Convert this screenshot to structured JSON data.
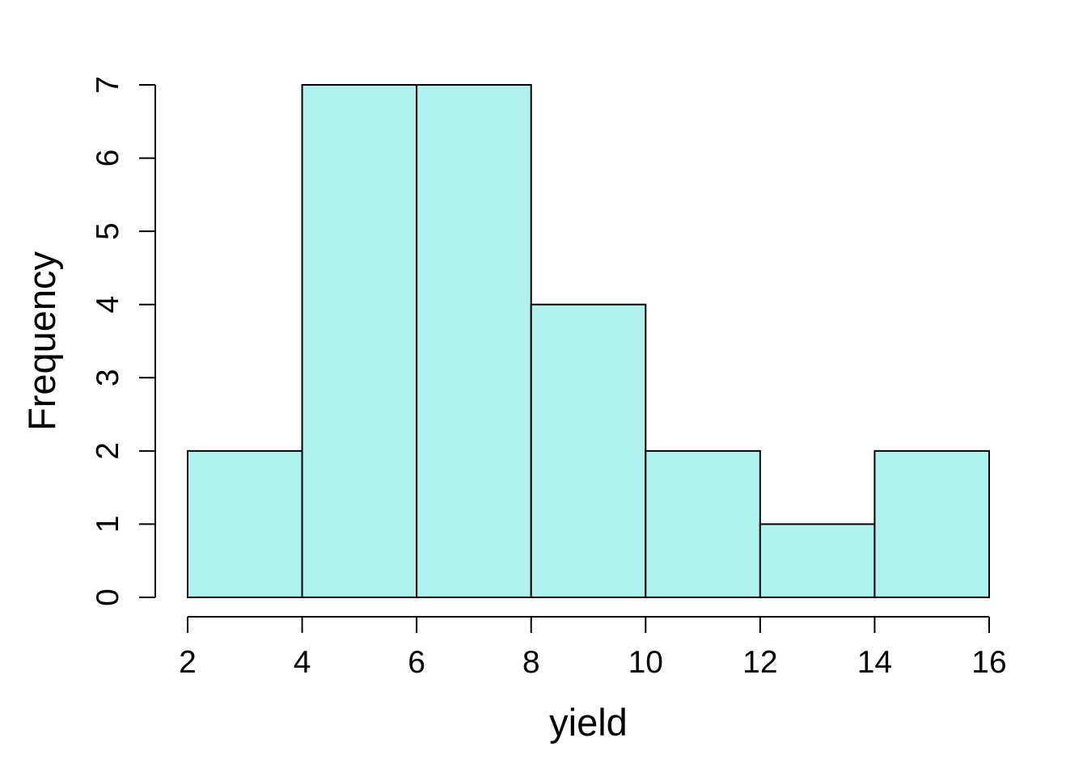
{
  "chart_data": {
    "type": "bar",
    "subtype": "histogram",
    "xlabel": "yield",
    "ylabel": "Frequency",
    "bins": [
      {
        "start": 2,
        "end": 4,
        "count": 2
      },
      {
        "start": 4,
        "end": 6,
        "count": 7
      },
      {
        "start": 6,
        "end": 8,
        "count": 7
      },
      {
        "start": 8,
        "end": 10,
        "count": 4
      },
      {
        "start": 10,
        "end": 12,
        "count": 2
      },
      {
        "start": 12,
        "end": 14,
        "count": 1
      },
      {
        "start": 14,
        "end": 16,
        "count": 2
      }
    ],
    "xlim": [
      2,
      16
    ],
    "ylim": [
      0,
      7
    ],
    "x_ticks": [
      2,
      4,
      6,
      8,
      10,
      12,
      14,
      16
    ],
    "y_ticks": [
      0,
      1,
      2,
      3,
      4,
      5,
      6,
      7
    ],
    "bar_color": "#b0f2ee",
    "edge_color": "#000000",
    "grid": false,
    "legend": "none"
  }
}
